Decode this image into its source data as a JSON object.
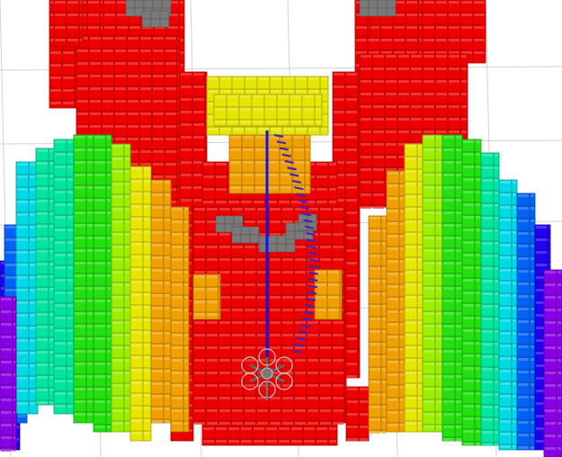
{
  "viewer": {
    "background": "#ffffff",
    "grid_color": "#d2d2d2"
  },
  "octomap": {
    "colormap": "height",
    "palette": [
      "#8a00e6",
      "#2200f0",
      "#0063f5",
      "#00d9e6",
      "#00e6a0",
      "#24e010",
      "#9cef00",
      "#e6e600",
      "#f0a000",
      "#ee0000"
    ],
    "occupied_voxel_color": "#7a7a7a"
  },
  "planned_path": {
    "color": "#1a10e0"
  },
  "trajectory_markers": {
    "color": "#4026b0"
  },
  "drone": {
    "type": "hexacopter",
    "color": "#c8c8c8"
  }
}
